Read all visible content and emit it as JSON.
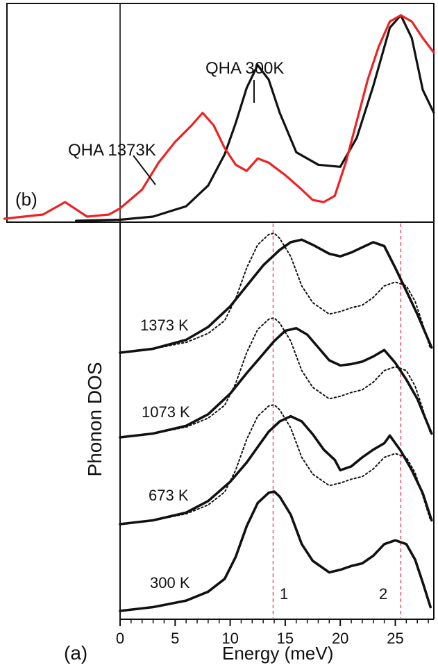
{
  "chart_data": [
    {
      "panel": "(b)",
      "type": "line",
      "title": "",
      "xlim": [
        -10.5,
        28.5
      ],
      "ylim": [
        0,
        1.0
      ],
      "annotations": [
        "QHA 300K",
        "QHA 1373K"
      ],
      "series": [
        {
          "name": "QHA 300K",
          "color": "#111111",
          "x": [
            -4,
            0,
            3,
            6,
            8,
            9.5,
            10.5,
            11.5,
            12.5,
            13.5,
            14.5,
            16,
            18,
            20,
            21.5,
            23,
            24.5,
            25.5,
            26.5,
            27.5,
            28.5
          ],
          "y": [
            0,
            0.005,
            0.02,
            0.07,
            0.17,
            0.32,
            0.47,
            0.64,
            0.75,
            0.68,
            0.52,
            0.33,
            0.27,
            0.26,
            0.4,
            0.65,
            0.93,
            0.99,
            0.88,
            0.63,
            0.52
          ]
        },
        {
          "name": "QHA 1373K",
          "color": "#ee2222",
          "x": [
            -10.5,
            -7,
            -5,
            -3,
            -1,
            0,
            2,
            3.5,
            5,
            6.5,
            7.5,
            8.5,
            9.5,
            10.5,
            11.5,
            12.5,
            13.5,
            15,
            16.5,
            17.5,
            18.5,
            19.5,
            20.5,
            21.5,
            22.5,
            23.5,
            24.5,
            25.5,
            26.5,
            27.5,
            28.5
          ],
          "y": [
            0.01,
            0.03,
            0.09,
            0.02,
            0.03,
            0.06,
            0.15,
            0.28,
            0.38,
            0.46,
            0.52,
            0.46,
            0.35,
            0.27,
            0.24,
            0.3,
            0.28,
            0.22,
            0.15,
            0.1,
            0.09,
            0.12,
            0.28,
            0.48,
            0.68,
            0.84,
            0.96,
            0.99,
            0.96,
            0.88,
            0.81
          ]
        }
      ]
    },
    {
      "panel": "(a)",
      "type": "line",
      "xlabel": "Energy (meV)",
      "ylabel": "Phonon DOS",
      "xlim": [
        0,
        28.5
      ],
      "xticks": [
        0,
        5,
        10,
        15,
        20,
        25
      ],
      "reference_lines": [
        {
          "label": "1",
          "x": 13.9,
          "color": "#ee3355"
        },
        {
          "label": "2",
          "x": 25.5,
          "color": "#ee3355"
        }
      ],
      "series": [
        {
          "name": "300 K",
          "style": "solid",
          "x": [
            0,
            3,
            6,
            8,
            9.5,
            10.5,
            11.5,
            12.5,
            13.5,
            14,
            14.5,
            15.5,
            16.5,
            17.5,
            19,
            20,
            21,
            22,
            23,
            24,
            25,
            26,
            26.8,
            27.5,
            28.2
          ],
          "y": [
            0,
            0.03,
            0.08,
            0.15,
            0.25,
            0.42,
            0.66,
            0.84,
            0.92,
            0.93,
            0.89,
            0.75,
            0.52,
            0.39,
            0.3,
            0.32,
            0.35,
            0.37,
            0.43,
            0.52,
            0.55,
            0.52,
            0.4,
            0.22,
            0.03
          ]
        },
        {
          "name": "673 K",
          "style": "solid",
          "x": [
            0,
            3,
            6,
            8,
            10,
            11.5,
            12.5,
            13.5,
            14.5,
            15.5,
            16.5,
            17.5,
            18.5,
            19.5,
            20,
            21,
            22,
            23,
            24,
            24.5,
            25.5,
            26.5,
            27.5,
            28.3
          ],
          "y": [
            0,
            0.03,
            0.09,
            0.18,
            0.33,
            0.48,
            0.6,
            0.72,
            0.8,
            0.84,
            0.8,
            0.7,
            0.58,
            0.5,
            0.42,
            0.45,
            0.52,
            0.58,
            0.63,
            0.69,
            0.57,
            0.42,
            0.24,
            0.03
          ]
        },
        {
          "name": "673 K (300 K reference)",
          "style": "dotted",
          "x": [
            0,
            3,
            6,
            8,
            9.5,
            10.5,
            11.5,
            12.5,
            13.5,
            14,
            14.5,
            15.5,
            16.5,
            17.5,
            19,
            20,
            21,
            22,
            23,
            24,
            25,
            26,
            26.8,
            27.5,
            28.2
          ],
          "y": [
            0,
            0.03,
            0.08,
            0.15,
            0.25,
            0.42,
            0.66,
            0.84,
            0.92,
            0.93,
            0.89,
            0.75,
            0.52,
            0.39,
            0.3,
            0.32,
            0.35,
            0.37,
            0.43,
            0.52,
            0.55,
            0.52,
            0.4,
            0.22,
            0.03
          ]
        },
        {
          "name": "1073 K",
          "style": "solid",
          "x": [
            0,
            3,
            6,
            8,
            10,
            11.5,
            13,
            14,
            15,
            16,
            17,
            18,
            19,
            20,
            21,
            22,
            23,
            24,
            25,
            26,
            27,
            28.3
          ],
          "y": [
            0,
            0.03,
            0.09,
            0.18,
            0.34,
            0.5,
            0.65,
            0.75,
            0.83,
            0.85,
            0.8,
            0.7,
            0.6,
            0.56,
            0.57,
            0.59,
            0.63,
            0.68,
            0.58,
            0.45,
            0.3,
            0.03
          ]
        },
        {
          "name": "1073 K (300 K reference)",
          "style": "dotted",
          "x": [
            0,
            3,
            6,
            8,
            9.5,
            10.5,
            11.5,
            12.5,
            13.5,
            14,
            14.5,
            15.5,
            16.5,
            17.5,
            19,
            20,
            21,
            22,
            23,
            24,
            25,
            26,
            26.8,
            27.5,
            28.2
          ],
          "y": [
            0,
            0.03,
            0.08,
            0.15,
            0.25,
            0.42,
            0.66,
            0.84,
            0.92,
            0.93,
            0.89,
            0.75,
            0.52,
            0.39,
            0.3,
            0.32,
            0.35,
            0.37,
            0.43,
            0.52,
            0.55,
            0.52,
            0.4,
            0.22,
            0.03
          ]
        },
        {
          "name": "1373 K",
          "style": "solid",
          "x": [
            0,
            3,
            6,
            8,
            10,
            11.5,
            13,
            14.5,
            15.5,
            16.5,
            17.5,
            19,
            20,
            21,
            22,
            23,
            24,
            25,
            26,
            27,
            28.3
          ],
          "y": [
            0,
            0.03,
            0.1,
            0.2,
            0.36,
            0.52,
            0.68,
            0.8,
            0.86,
            0.88,
            0.84,
            0.77,
            0.75,
            0.78,
            0.82,
            0.86,
            0.83,
            0.66,
            0.48,
            0.3,
            0.04
          ]
        },
        {
          "name": "1373 K (300 K reference)",
          "style": "dotted",
          "x": [
            0,
            3,
            6,
            8,
            9.5,
            10.5,
            11.5,
            12.5,
            13.5,
            14,
            14.5,
            15.5,
            16.5,
            17.5,
            19,
            20,
            21,
            22,
            23,
            24,
            25,
            26,
            26.8,
            27.5,
            28.2
          ],
          "y": [
            0,
            0.03,
            0.08,
            0.15,
            0.25,
            0.42,
            0.66,
            0.84,
            0.92,
            0.93,
            0.89,
            0.75,
            0.52,
            0.39,
            0.3,
            0.32,
            0.35,
            0.37,
            0.43,
            0.52,
            0.55,
            0.52,
            0.4,
            0.22,
            0.03
          ]
        }
      ]
    }
  ]
}
